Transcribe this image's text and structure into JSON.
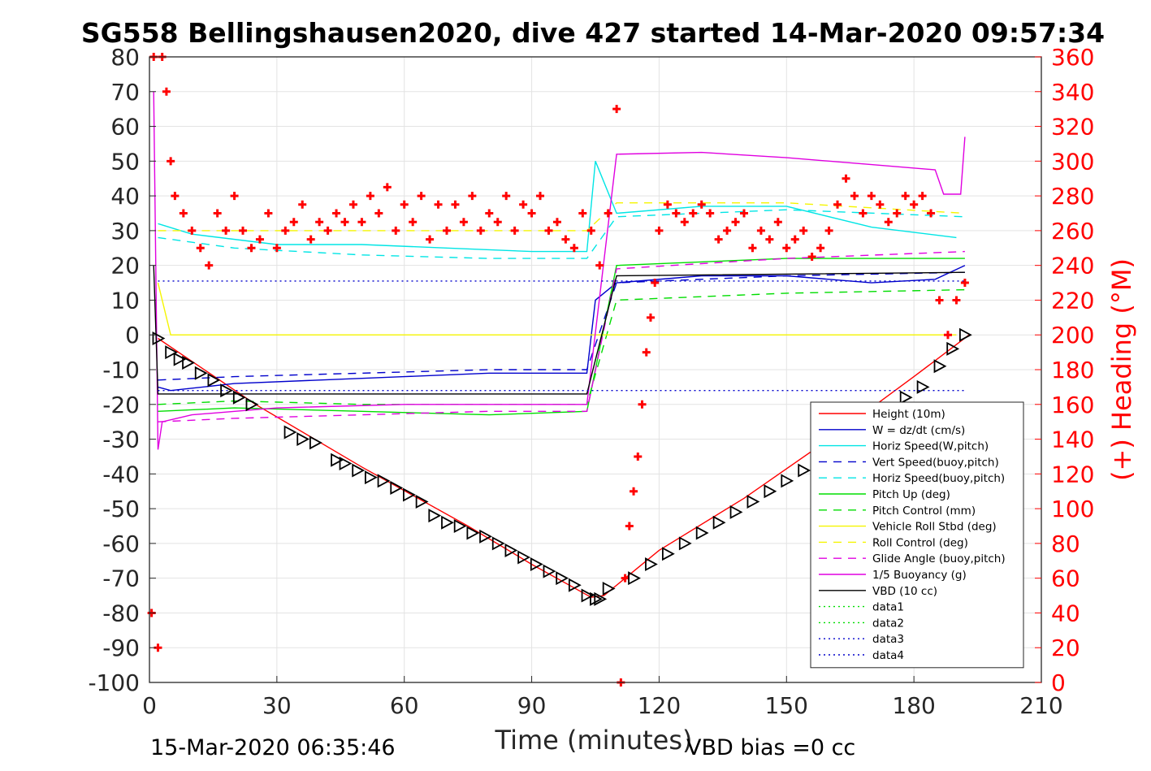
{
  "chart_data": {
    "type": "line",
    "title": "SG558 Bellingshausen2020, dive 427 started 14-Mar-2020 09:57:34",
    "xlabel": "Time (minutes)",
    "ylabel_right": "(+) Heading (°M)",
    "footer_left": "15-Mar-2020 06:35:46",
    "footer_right": "VBD bias =0 cc",
    "xlim": [
      0,
      210
    ],
    "ylim": [
      -100,
      80
    ],
    "ylim_right": [
      0,
      360
    ],
    "x_ticks": [
      0,
      30,
      60,
      90,
      120,
      150,
      180,
      210
    ],
    "y_ticks": [
      -100,
      -90,
      -80,
      -70,
      -60,
      -50,
      -40,
      -30,
      -20,
      -10,
      0,
      10,
      20,
      30,
      40,
      50,
      60,
      70,
      80
    ],
    "y_ticks_right": [
      0,
      20,
      40,
      60,
      80,
      100,
      120,
      140,
      160,
      180,
      200,
      220,
      240,
      260,
      280,
      300,
      320,
      340,
      360
    ],
    "grid": true,
    "legend_position": "lower-right",
    "colors": {
      "red": "#ff0000",
      "blue": "#0000cc",
      "cyan": "#00e5e5",
      "green": "#00dd00",
      "yellow": "#f5f500",
      "magenta": "#e000e0",
      "black": "#000000"
    },
    "series": [
      {
        "name": "Height (10m)",
        "color": "#ff0000",
        "dash": "solid",
        "x": [
          2,
          25,
          50,
          75,
          90,
          104,
          107,
          120,
          140,
          160,
          180,
          193
        ],
        "y": [
          -1,
          -20,
          -38,
          -55,
          -66,
          -75.5,
          -75,
          -62,
          -47,
          -30,
          -12,
          0
        ]
      },
      {
        "name": "W = dz/dt (cm/s)",
        "color": "#0000cc",
        "dash": "solid",
        "x": [
          2,
          5,
          20,
          40,
          60,
          80,
          103,
          105,
          110,
          130,
          150,
          170,
          185,
          192
        ],
        "y": [
          -15,
          -16,
          -14,
          -13,
          -12,
          -11,
          -11,
          10,
          15,
          17,
          17,
          15,
          16,
          20
        ]
      },
      {
        "name": "Horiz Speed(W,pitch)",
        "color": "#00e5e5",
        "dash": "solid",
        "x": [
          2,
          10,
          30,
          50,
          70,
          90,
          103,
          105,
          110,
          130,
          150,
          170,
          190
        ],
        "y": [
          32,
          29,
          26,
          26,
          25,
          24,
          24,
          50,
          35,
          37,
          37,
          31,
          28
        ]
      },
      {
        "name": "Vert Speed(buoy,pitch)",
        "color": "#0000cc",
        "dash": "10,8",
        "x": [
          2,
          20,
          50,
          80,
          103,
          110,
          150,
          192
        ],
        "y": [
          -13,
          -12,
          -11,
          -10,
          -10,
          15,
          17,
          18
        ]
      },
      {
        "name": "Horiz Speed(buoy,pitch)",
        "color": "#00e5e5",
        "dash": "10,8",
        "x": [
          2,
          20,
          50,
          80,
          103,
          110,
          150,
          192
        ],
        "y": [
          28,
          25,
          23,
          22,
          22,
          34,
          36,
          34
        ]
      },
      {
        "name": "Pitch Up (deg)",
        "color": "#00dd00",
        "dash": "solid",
        "x": [
          2,
          20,
          50,
          80,
          103,
          110,
          150,
          192
        ],
        "y": [
          -22,
          -21,
          -22,
          -23,
          -22,
          20,
          22,
          22
        ]
      },
      {
        "name": "Pitch Control (mm)",
        "color": "#00dd00",
        "dash": "10,8",
        "x": [
          2,
          20,
          50,
          80,
          103,
          110,
          150,
          192
        ],
        "y": [
          -20,
          -19,
          -20,
          -20,
          -20,
          10,
          12,
          13
        ]
      },
      {
        "name": "Vehicle Roll Stbd (deg)",
        "color": "#f5f500",
        "dash": "solid",
        "x": [
          2,
          5,
          15,
          30,
          50,
          70,
          90,
          103,
          110,
          130,
          150,
          170,
          190
        ],
        "y": [
          15,
          0,
          0,
          0,
          0,
          0,
          0,
          0,
          0,
          0,
          0,
          0,
          0
        ]
      },
      {
        "name": "Roll Control (deg)",
        "color": "#f5f500",
        "dash": "10,8",
        "x": [
          2,
          30,
          60,
          90,
          103,
          110,
          150,
          192
        ],
        "y": [
          30,
          30,
          30,
          30,
          30,
          38,
          38,
          35
        ]
      },
      {
        "name": "Glide Angle (buoy,pitch)",
        "color": "#e000e0",
        "dash": "10,8",
        "x": [
          2,
          20,
          50,
          80,
          103,
          110,
          150,
          192
        ],
        "y": [
          -25,
          -24,
          -23,
          -22,
          -22,
          19,
          22,
          24
        ]
      },
      {
        "name": "1/5 Buoyancy (g)",
        "color": "#e000e0",
        "dash": "solid",
        "x": [
          1,
          2,
          3,
          10,
          30,
          60,
          90,
          103,
          110,
          130,
          150,
          170,
          185,
          187,
          191,
          192
        ],
        "y": [
          70,
          -33,
          -25,
          -23,
          -21,
          -20,
          -20,
          -20,
          52,
          52.5,
          51,
          49,
          47.5,
          40.5,
          40.5,
          57
        ]
      },
      {
        "name": "VBD (10 cc)",
        "color": "#000000",
        "dash": "solid",
        "x": [
          1,
          2,
          103,
          110,
          192
        ],
        "y": [
          20,
          -17,
          -17,
          17,
          18
        ]
      },
      {
        "name": "data1",
        "color": "#00dd00",
        "dash": "2,4",
        "x": [],
        "y": []
      },
      {
        "name": "data2",
        "color": "#00dd00",
        "dash": "2,4",
        "x": [],
        "y": []
      },
      {
        "name": "data3",
        "color": "#0000cc",
        "dash": "2,4",
        "x": [
          2,
          192
        ],
        "y": [
          -16,
          -16
        ]
      },
      {
        "name": "data4",
        "color": "#0000cc",
        "dash": "2,4",
        "x": [
          2,
          192
        ],
        "y": [
          15.5,
          15.5
        ]
      }
    ],
    "heading_points": {
      "marker": "+",
      "color": "#ff0000",
      "axis": "right",
      "x": [
        0.5,
        1,
        2,
        3,
        4,
        5,
        6,
        8,
        10,
        12,
        14,
        16,
        18,
        20,
        22,
        24,
        26,
        28,
        30,
        32,
        34,
        36,
        38,
        40,
        42,
        44,
        46,
        48,
        50,
        52,
        54,
        56,
        58,
        60,
        62,
        64,
        66,
        68,
        70,
        72,
        74,
        76,
        78,
        80,
        82,
        84,
        86,
        88,
        90,
        92,
        94,
        96,
        98,
        100,
        102,
        104,
        106,
        108,
        110,
        111,
        112,
        113,
        114,
        115,
        116,
        117,
        118,
        119,
        120,
        122,
        124,
        126,
        128,
        130,
        132,
        134,
        136,
        138,
        140,
        142,
        144,
        146,
        148,
        150,
        152,
        154,
        156,
        158,
        160,
        162,
        164,
        166,
        168,
        170,
        172,
        174,
        176,
        178,
        180,
        182,
        184,
        186,
        188,
        190,
        192
      ],
      "y": [
        40,
        360,
        20,
        360,
        340,
        300,
        280,
        270,
        260,
        250,
        240,
        270,
        260,
        280,
        260,
        250,
        255,
        270,
        250,
        260,
        265,
        275,
        255,
        265,
        260,
        270,
        265,
        275,
        265,
        280,
        270,
        285,
        260,
        275,
        265,
        280,
        255,
        275,
        260,
        275,
        265,
        280,
        260,
        270,
        265,
        280,
        260,
        275,
        270,
        280,
        260,
        265,
        255,
        250,
        270,
        260,
        240,
        270,
        330,
        0,
        60,
        90,
        110,
        130,
        160,
        190,
        210,
        230,
        260,
        275,
        270,
        265,
        270,
        275,
        270,
        255,
        260,
        265,
        270,
        250,
        260,
        255,
        265,
        250,
        255,
        260,
        245,
        250,
        260,
        275,
        290,
        280,
        270,
        280,
        275,
        265,
        270,
        280,
        275,
        280,
        270,
        220,
        200,
        220,
        230
      ]
    },
    "vbd_triangles": {
      "marker": "triangle",
      "color": "#000000",
      "x": [
        2,
        5,
        7,
        9,
        12,
        15,
        18,
        21,
        24,
        33,
        36,
        39,
        44,
        46,
        49,
        52,
        55,
        58,
        61,
        64,
        67,
        70,
        73,
        76,
        79,
        82,
        85,
        88,
        91,
        94,
        97,
        100,
        103,
        105,
        106,
        108,
        114,
        118,
        122,
        126,
        130,
        134,
        138,
        142,
        146,
        150,
        154,
        158,
        162,
        166,
        170,
        174,
        178,
        182,
        186,
        189,
        192
      ],
      "y": [
        -1,
        -5,
        -7,
        -8,
        -11,
        -13,
        -16,
        -18,
        -20,
        -28,
        -30,
        -31,
        -36,
        -37,
        -39,
        -41,
        -42,
        -44,
        -46,
        -48,
        -52,
        -54,
        -55,
        -57,
        -58,
        -60,
        -62,
        -64,
        -66,
        -68,
        -70,
        -72,
        -75,
        -76,
        -76,
        -73,
        -70,
        -66,
        -63,
        -60,
        -57,
        -54,
        -51,
        -48,
        -45,
        -42,
        -39,
        -36,
        -33,
        -30,
        -26,
        -22,
        -18,
        -15,
        -9,
        -4,
        0
      ]
    }
  }
}
